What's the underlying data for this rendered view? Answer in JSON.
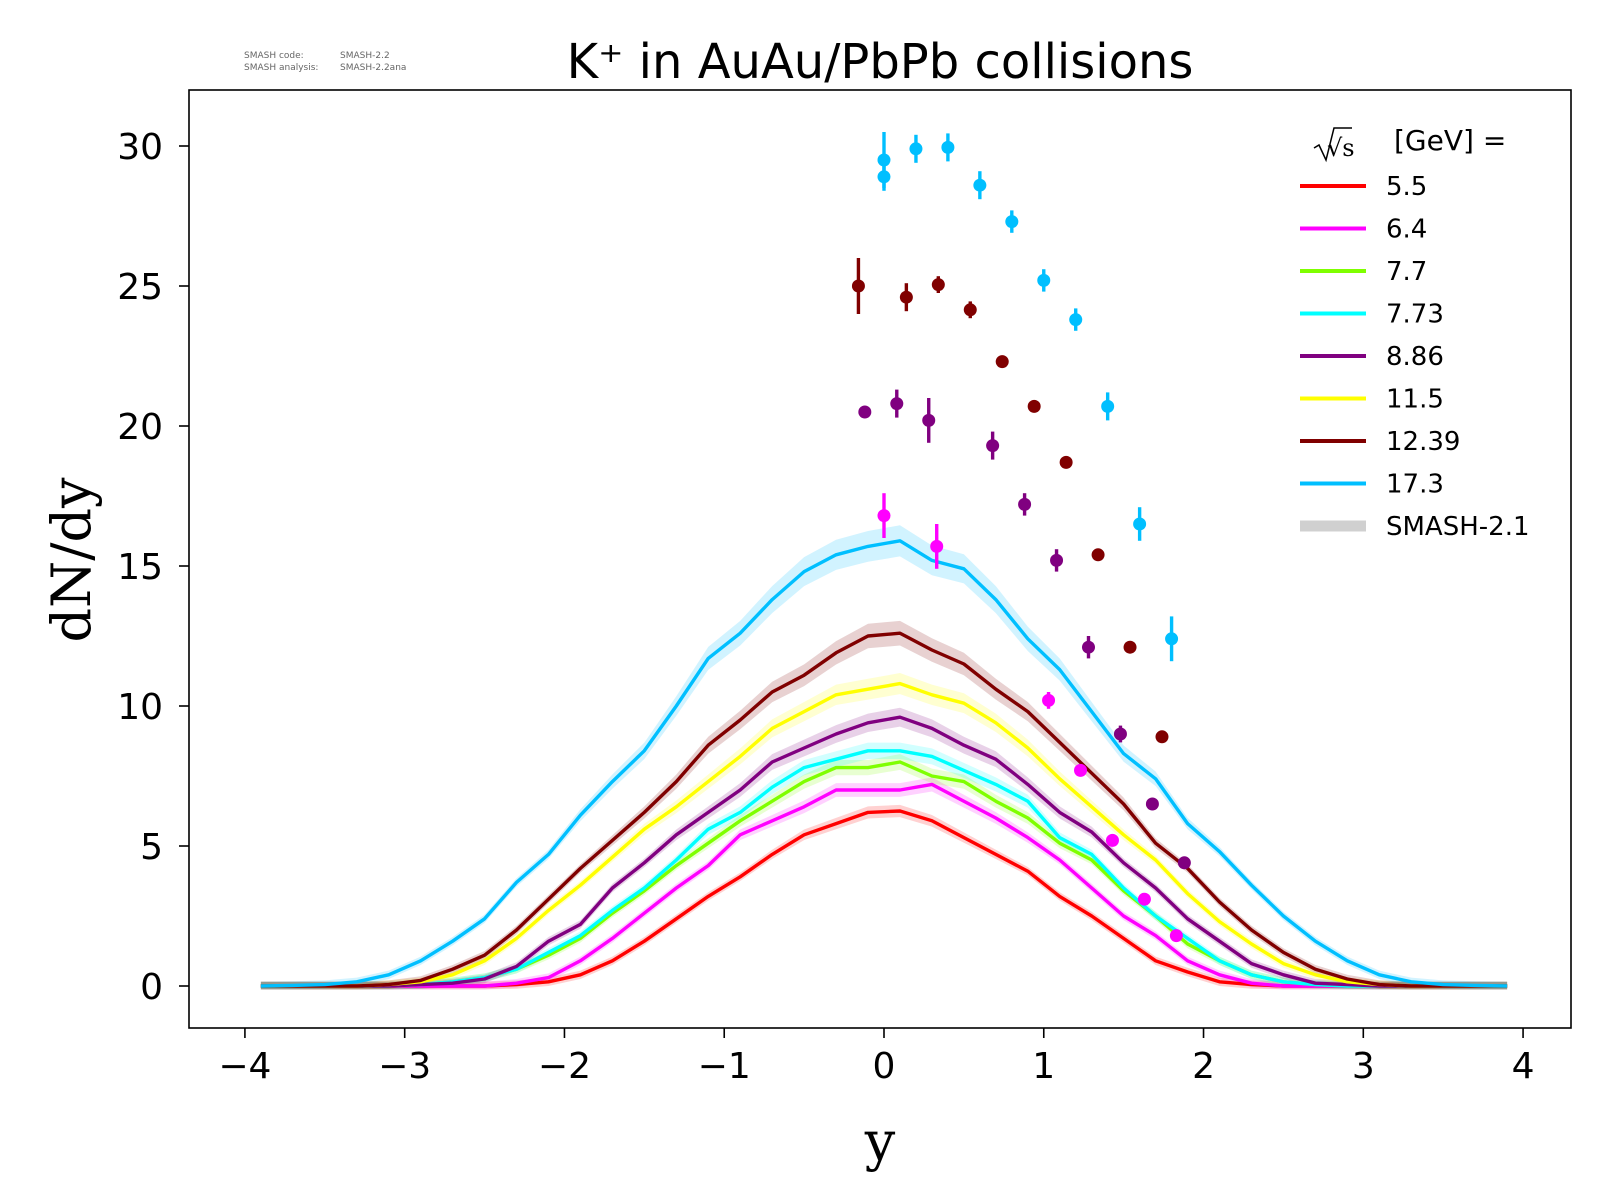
{
  "meta": {
    "code_label": "SMASH code:",
    "code_value": "SMASH-2.2",
    "analysis_label": "SMASH analysis:",
    "analysis_value": "SMASH-2.2ana"
  },
  "chart_data": {
    "type": "line",
    "title": "K⁺ in AuAu/PbPb collisions",
    "xlabel": "y",
    "ylabel": "dN/dy",
    "xlim": [
      -4.35,
      4.3
    ],
    "ylim": [
      -1.5,
      32
    ],
    "xticks": [
      -4,
      -3,
      -2,
      -1,
      0,
      1,
      2,
      3,
      4
    ],
    "xtick_labels": [
      "−4",
      "−3",
      "−2",
      "−1",
      "0",
      "1",
      "2",
      "3",
      "4"
    ],
    "yticks": [
      0,
      5,
      10,
      15,
      20,
      25,
      30
    ],
    "ytick_labels": [
      "0",
      "5",
      "10",
      "15",
      "20",
      "25",
      "30"
    ],
    "grid": false,
    "legend": {
      "placement": "top-right",
      "title_prefix": "√s",
      "title_suffix": "[GeV] =",
      "band_label": "SMASH-2.1",
      "band_color": "#d0d0d0"
    },
    "x": [
      -3.9,
      -3.7,
      -3.5,
      -3.3,
      -3.1,
      -2.9,
      -2.7,
      -2.5,
      -2.3,
      -2.1,
      -1.9,
      -1.7,
      -1.5,
      -1.3,
      -1.1,
      -0.9,
      -0.7,
      -0.5,
      -0.3,
      -0.1,
      0.1,
      0.3,
      0.5,
      0.7,
      0.9,
      1.1,
      1.3,
      1.5,
      1.7,
      1.9,
      2.1,
      2.3,
      2.5,
      2.7,
      2.9,
      3.1,
      3.3,
      3.5,
      3.7,
      3.9
    ],
    "series": [
      {
        "name": "5.5",
        "color": "#ff0000",
        "values": [
          0,
          0,
          0,
          0,
          0,
          0,
          0,
          0,
          0.05,
          0.15,
          0.4,
          0.9,
          1.6,
          2.4,
          3.2,
          3.9,
          4.7,
          5.4,
          5.8,
          6.2,
          6.25,
          5.9,
          5.3,
          4.7,
          4.1,
          3.2,
          2.5,
          1.7,
          0.9,
          0.5,
          0.15,
          0.05,
          0,
          0,
          0,
          0,
          0,
          0,
          0,
          0
        ],
        "points_x": [],
        "points_y": [],
        "points_err": []
      },
      {
        "name": "6.4",
        "color": "#ff00ff",
        "values": [
          0,
          0,
          0,
          0,
          0,
          0,
          0,
          0,
          0.1,
          0.3,
          0.9,
          1.7,
          2.6,
          3.5,
          4.3,
          5.4,
          5.9,
          6.4,
          7.0,
          7.0,
          7.0,
          7.2,
          6.6,
          6.0,
          5.3,
          4.5,
          3.5,
          2.5,
          1.8,
          0.9,
          0.4,
          0.1,
          0,
          0,
          0,
          0,
          0,
          0,
          0,
          0
        ],
        "points_x": [
          0.0,
          0.33,
          1.03,
          1.23,
          1.43,
          1.63,
          1.83
        ],
        "points_y": [
          16.8,
          15.7,
          10.2,
          7.7,
          5.2,
          3.1,
          1.8
        ],
        "points_err": [
          0.8,
          0.8,
          0.3,
          0.2,
          0.2,
          0.2,
          0.2
        ]
      },
      {
        "name": "7.7",
        "color": "#7fff00",
        "values": [
          0,
          0,
          0,
          0,
          0,
          0.05,
          0.15,
          0.3,
          0.6,
          1.1,
          1.7,
          2.6,
          3.4,
          4.3,
          5.1,
          5.9,
          6.6,
          7.3,
          7.8,
          7.8,
          8.0,
          7.5,
          7.3,
          6.6,
          6.0,
          5.1,
          4.5,
          3.4,
          2.5,
          1.5,
          0.9,
          0.4,
          0.15,
          0.05,
          0,
          0,
          0,
          0,
          0,
          0
        ],
        "points_x": [],
        "points_y": [],
        "points_err": []
      },
      {
        "name": "7.73",
        "color": "#00ffff",
        "values": [
          0,
          0,
          0,
          0,
          0,
          0.05,
          0.15,
          0.3,
          0.6,
          1.2,
          1.8,
          2.7,
          3.5,
          4.5,
          5.6,
          6.2,
          7.1,
          7.8,
          8.1,
          8.4,
          8.4,
          8.2,
          7.7,
          7.2,
          6.6,
          5.3,
          4.7,
          3.5,
          2.5,
          1.7,
          0.9,
          0.4,
          0.15,
          0.05,
          0,
          0,
          0,
          0,
          0,
          0
        ],
        "points_x": [],
        "points_y": [],
        "points_err": []
      },
      {
        "name": "8.86",
        "color": "#800080",
        "values": [
          0,
          0,
          0,
          0,
          0,
          0.05,
          0.1,
          0.25,
          0.7,
          1.6,
          2.2,
          3.5,
          4.4,
          5.4,
          6.2,
          7.0,
          8.0,
          8.5,
          9.0,
          9.4,
          9.6,
          9.2,
          8.6,
          8.1,
          7.2,
          6.2,
          5.5,
          4.4,
          3.5,
          2.4,
          1.6,
          0.8,
          0.4,
          0.1,
          0.05,
          0,
          0,
          0,
          0,
          0
        ],
        "points_x": [
          -0.12,
          0.08,
          0.28,
          0.68,
          0.88,
          1.08,
          1.28,
          1.48,
          1.68,
          1.88
        ],
        "points_y": [
          20.5,
          20.8,
          20.2,
          19.3,
          17.2,
          15.2,
          12.1,
          9.0,
          6.5,
          4.4
        ],
        "points_err": [
          0.2,
          0.5,
          0.8,
          0.5,
          0.4,
          0.4,
          0.4,
          0.3,
          0.2,
          0.2
        ]
      },
      {
        "name": "11.5",
        "color": "#ffff00",
        "values": [
          0,
          0,
          0,
          0,
          0.05,
          0.15,
          0.4,
          0.9,
          1.7,
          2.7,
          3.6,
          4.6,
          5.6,
          6.4,
          7.3,
          8.2,
          9.2,
          9.8,
          10.4,
          10.6,
          10.8,
          10.4,
          10.1,
          9.4,
          8.5,
          7.4,
          6.4,
          5.4,
          4.5,
          3.3,
          2.3,
          1.5,
          0.8,
          0.4,
          0.15,
          0.05,
          0,
          0,
          0,
          0
        ],
        "points_x": [],
        "points_y": [],
        "points_err": []
      },
      {
        "name": "12.39",
        "color": "#800000",
        "values": [
          0,
          0,
          0,
          0,
          0.05,
          0.2,
          0.6,
          1.1,
          2.0,
          3.1,
          4.2,
          5.2,
          6.2,
          7.3,
          8.6,
          9.5,
          10.5,
          11.1,
          11.9,
          12.5,
          12.6,
          12.0,
          11.5,
          10.6,
          9.8,
          8.7,
          7.6,
          6.5,
          5.1,
          4.2,
          3.0,
          2.0,
          1.2,
          0.6,
          0.25,
          0.05,
          0,
          0,
          0,
          0
        ],
        "points_x": [
          -0.16,
          0.14,
          0.34,
          0.54,
          0.74,
          0.94,
          1.14,
          1.34,
          1.54,
          1.74
        ],
        "points_y": [
          25.0,
          24.6,
          25.05,
          24.15,
          22.3,
          20.7,
          18.7,
          15.4,
          12.1,
          8.9
        ],
        "points_err": [
          1.0,
          0.5,
          0.3,
          0.3,
          0.2,
          0.2,
          0.2,
          0.15,
          0.15,
          0.15
        ]
      },
      {
        "name": "17.3",
        "color": "#00bfff",
        "values": [
          0,
          0.02,
          0.05,
          0.15,
          0.4,
          0.9,
          1.6,
          2.4,
          3.7,
          4.7,
          6.1,
          7.3,
          8.4,
          10.0,
          11.7,
          12.6,
          13.8,
          14.8,
          15.4,
          15.7,
          15.9,
          15.2,
          14.9,
          13.8,
          12.4,
          11.3,
          9.8,
          8.3,
          7.4,
          5.8,
          4.8,
          3.6,
          2.5,
          1.6,
          0.9,
          0.4,
          0.15,
          0.05,
          0.02,
          0
        ],
        "points_x": [
          0.0,
          0.2,
          0.4,
          0.6,
          0.8,
          1.0,
          1.2,
          1.4,
          1.6,
          1.8,
          0.0
        ],
        "points_y": [
          29.5,
          29.9,
          29.95,
          28.6,
          27.3,
          25.2,
          23.8,
          20.7,
          16.5,
          12.4,
          28.9
        ],
        "points_err": [
          1.0,
          0.5,
          0.5,
          0.5,
          0.4,
          0.4,
          0.4,
          0.5,
          0.6,
          0.8,
          0.5
        ]
      }
    ]
  }
}
